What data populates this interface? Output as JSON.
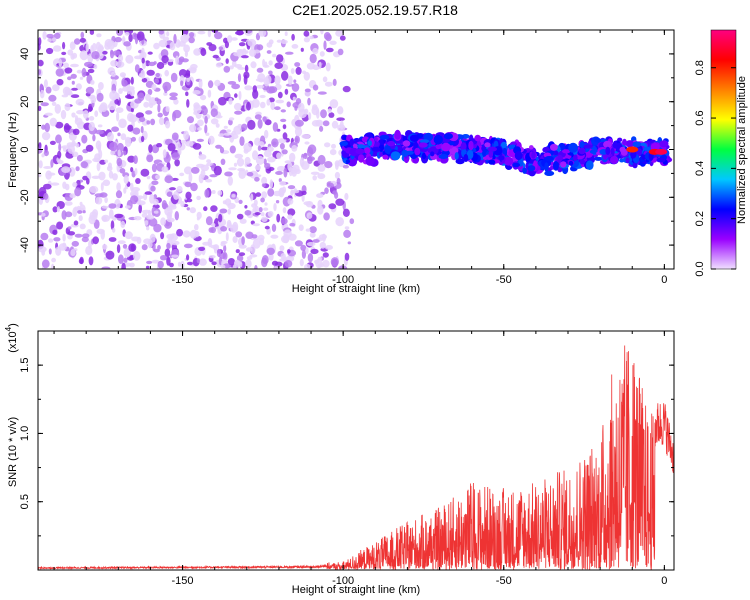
{
  "title": "C2E1.2025.052.19.57.R18",
  "chart_data": [
    {
      "type": "heatmap",
      "title": "",
      "xlabel": "Height of straight line (km)",
      "ylabel": "Frequency (Hz)",
      "xlim": [
        -195,
        3
      ],
      "ylim": [
        -50,
        50
      ],
      "xticks": [
        "-150",
        "-100",
        "-50",
        "0"
      ],
      "yticks": [
        "-40",
        "-20",
        "0",
        "20",
        "40"
      ],
      "colorbar": {
        "label": "Normalized spectral amplitude",
        "range": [
          0.0,
          0.95
        ],
        "ticks": [
          "0.0",
          "0.2",
          "0.4",
          "0.6",
          "0.8"
        ],
        "colors": [
          "#f0e0ff",
          "#9900ff",
          "#0000ff",
          "#00c8ff",
          "#00ff40",
          "#ffff00",
          "#ff8000",
          "#ff0000",
          "#ff0080"
        ]
      },
      "scatter_region": {
        "x_range": [
          -195,
          -97
        ],
        "freq_range": [
          -50,
          50
        ],
        "amplitude": [
          0.0,
          0.05
        ]
      },
      "band_center": [
        [
          -100,
          0
        ],
        [
          -90,
          0
        ],
        [
          -85,
          2
        ],
        [
          -80,
          1
        ],
        [
          -70,
          1
        ],
        [
          -60,
          0
        ],
        [
          -50,
          -1
        ],
        [
          -40,
          -5
        ],
        [
          -30,
          -3
        ],
        [
          -20,
          0
        ],
        [
          -10,
          -1
        ],
        [
          -5,
          -1
        ],
        [
          0,
          -1
        ]
      ],
      "band_halfwidth_hz": 5,
      "band_amplitude": [
        0.1,
        0.3
      ],
      "peak_points": [
        [
          -10,
          0,
          0.8
        ],
        [
          -3,
          -1,
          0.85
        ],
        [
          -1,
          -1,
          0.9
        ]
      ]
    },
    {
      "type": "line",
      "title": "",
      "xlabel": "Height of straight line (km)",
      "ylabel": "SNR (10 * v/v)",
      "yscale_label": "(x10",
      "yscale_exp": "4",
      "xlim": [
        -195,
        3
      ],
      "ylim": [
        0,
        17500
      ],
      "xticks": [
        "-150",
        "-100",
        "-50",
        "0"
      ],
      "yticks": [
        "0.5",
        "1.0",
        "1.5"
      ],
      "color": "#ee3333",
      "envelope": [
        [
          -195,
          200
        ],
        [
          -110,
          300
        ],
        [
          -100,
          500
        ],
        [
          -90,
          2000
        ],
        [
          -80,
          3500
        ],
        [
          -70,
          4500
        ],
        [
          -60,
          6500
        ],
        [
          -50,
          6000
        ],
        [
          -40,
          6500
        ],
        [
          -30,
          7500
        ],
        [
          -20,
          10000
        ],
        [
          -15,
          16000
        ],
        [
          -10,
          17500
        ],
        [
          -8,
          15000
        ],
        [
          -5,
          11500
        ],
        [
          0,
          12000
        ],
        [
          3,
          9000
        ]
      ]
    }
  ]
}
